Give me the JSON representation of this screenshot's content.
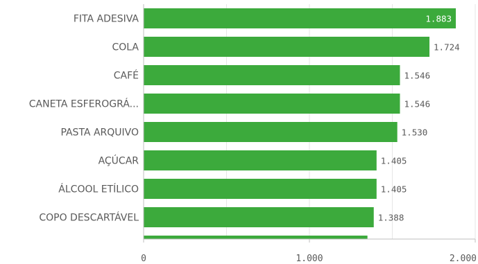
{
  "chart_data": {
    "type": "bar",
    "orientation": "horizontal",
    "categories": [
      "FITA ADESIVA",
      "COLA",
      "CAFÉ",
      "CANETA ESFEROGRÁ...",
      "PASTA ARQUIVO",
      "AÇÚCAR",
      "ÁLCOOL ETÍLICO",
      "COPO DESCARTÁVEL",
      ""
    ],
    "values": [
      1883,
      1724,
      1546,
      1546,
      1530,
      1405,
      1405,
      1388,
      1350
    ],
    "value_labels": [
      "1.883",
      "1.724",
      "1.546",
      "1.546",
      "1.530",
      "1.405",
      "1.405",
      "1.388",
      ""
    ],
    "xlim": [
      0,
      2000
    ],
    "x_ticks": [
      0,
      1000,
      2000
    ],
    "x_tick_labels": [
      "0",
      "1.000",
      "2.000"
    ],
    "grid": true,
    "bar_color": "#3caa3c",
    "inside_label_color": "#ffffff",
    "outside_label_color": "#595959",
    "grid_color": "#e6e6e6",
    "axis_color": "#bfbfbf",
    "text_color": "#595959"
  }
}
